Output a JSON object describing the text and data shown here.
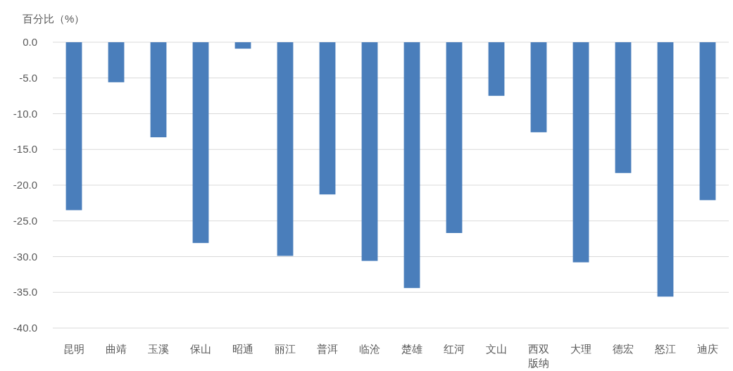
{
  "chart_data": {
    "type": "bar",
    "ylabel": "百分比（%）",
    "categories": [
      "昆明",
      "曲靖",
      "玉溪",
      "保山",
      "昭通",
      "丽江",
      "普洱",
      "临沧",
      "楚雄",
      "红河",
      "文山",
      "西双版纳",
      "大理",
      "德宏",
      "怒江",
      "迪庆"
    ],
    "values": [
      -23.5,
      -5.6,
      -13.3,
      -28.1,
      -0.9,
      -29.9,
      -21.3,
      -30.6,
      -34.4,
      -26.7,
      -7.5,
      -12.6,
      -30.8,
      -18.3,
      -35.6,
      -22.1
    ],
    "color": "#4a7ebb",
    "ylim": [
      -40,
      0
    ],
    "yticks": [
      {
        "value": 0,
        "label": "0.0"
      },
      {
        "value": -5,
        "label": "-5.0"
      },
      {
        "value": -10,
        "label": "-10.0"
      },
      {
        "value": -15,
        "label": "-15.0"
      },
      {
        "value": -20,
        "label": "-20.0"
      },
      {
        "value": -25,
        "label": "-25.0"
      },
      {
        "value": -30,
        "label": "-30.0"
      },
      {
        "value": -35,
        "label": "-35.0"
      },
      {
        "value": -40,
        "label": "-40.0"
      }
    ],
    "grid": "y"
  }
}
